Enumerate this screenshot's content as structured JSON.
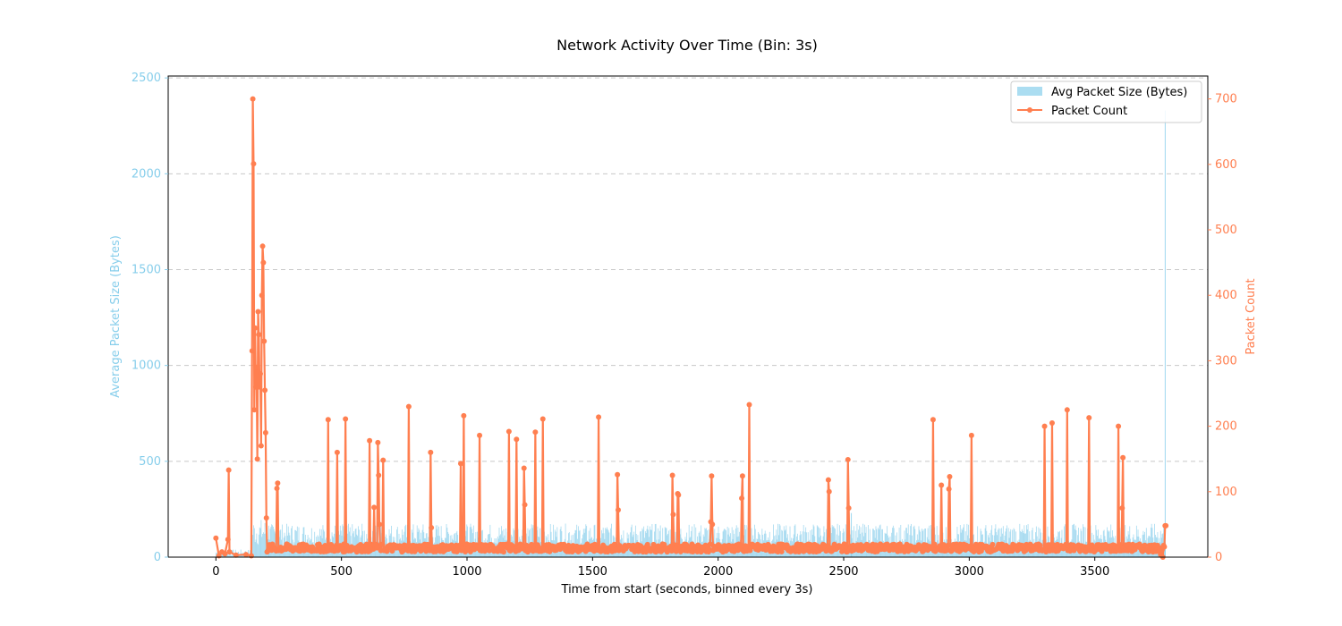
{
  "chart_data": {
    "type": "bar+line",
    "title": "Network Activity Over Time (Bin: 3s)",
    "xlabel": "Time from start (seconds, binned every 3s)",
    "ylabel_left": "Average Packet Size (Bytes)",
    "ylabel_right": "Packet Count",
    "xlim": [
      -190,
      3950
    ],
    "ylim_left": [
      0,
      2510
    ],
    "ylim_right": [
      0,
      735
    ],
    "x_ticks": [
      0,
      500,
      1000,
      1500,
      2000,
      2500,
      3000,
      3500
    ],
    "y_left_ticks": [
      0,
      500,
      1000,
      1500,
      2000,
      2500
    ],
    "y_right_ticks": [
      0,
      100,
      200,
      300,
      400,
      500,
      600,
      700
    ],
    "grid": "horizontal dashed",
    "legend_position": "top-right",
    "bin_seconds": 3,
    "colors": {
      "bars": "#87ceeb",
      "line": "#ff7f50",
      "left_axis": "#87ceeb",
      "right_axis": "#ff7f50"
    },
    "series": [
      {
        "name": "Avg Packet Size (Bytes)",
        "kind": "bar",
        "baseline_range": [
          60,
          170
        ],
        "segments": [
          {
            "x_start": 0,
            "x_end": 140,
            "level": [
              5,
              40
            ]
          },
          {
            "x_start": 141,
            "x_end": 210,
            "level": [
              60,
              200
            ]
          },
          {
            "x_start": 210,
            "x_end": 3780,
            "level": [
              60,
              175
            ]
          }
        ],
        "spikes": [
          {
            "x": 2530,
            "value": 230
          },
          {
            "x": 3780,
            "value": 2330
          }
        ]
      },
      {
        "name": "Packet Count",
        "kind": "line",
        "baseline_range": [
          8,
          20
        ],
        "points": [
          [
            0,
            29
          ],
          [
            12,
            2
          ],
          [
            24,
            8
          ],
          [
            36,
            5
          ],
          [
            48,
            27
          ],
          [
            51,
            133
          ],
          [
            54,
            8
          ],
          [
            80,
            3
          ],
          [
            120,
            4
          ],
          [
            141,
            2
          ],
          [
            144,
            315
          ],
          [
            147,
            700
          ],
          [
            150,
            601
          ],
          [
            153,
            225
          ],
          [
            156,
            350
          ],
          [
            159,
            260
          ],
          [
            162,
            290
          ],
          [
            165,
            150
          ],
          [
            168,
            375
          ],
          [
            171,
            340
          ],
          [
            174,
            260
          ],
          [
            177,
            280
          ],
          [
            180,
            170
          ],
          [
            183,
            400
          ],
          [
            186,
            475
          ],
          [
            189,
            450
          ],
          [
            192,
            330
          ],
          [
            195,
            255
          ],
          [
            198,
            190
          ],
          [
            201,
            60
          ],
          [
            204,
            8
          ],
          [
            243,
            105
          ],
          [
            246,
            113
          ],
          [
            249,
            10
          ],
          [
            447,
            210
          ],
          [
            450,
            10
          ],
          [
            483,
            160
          ],
          [
            486,
            10
          ],
          [
            516,
            211
          ],
          [
            519,
            10
          ],
          [
            612,
            178
          ],
          [
            615,
            10
          ],
          [
            630,
            76
          ],
          [
            645,
            175
          ],
          [
            648,
            125
          ],
          [
            651,
            50
          ],
          [
            666,
            148
          ],
          [
            669,
            10
          ],
          [
            768,
            230
          ],
          [
            771,
            10
          ],
          [
            855,
            160
          ],
          [
            858,
            45
          ],
          [
            861,
            10
          ],
          [
            975,
            143
          ],
          [
            978,
            10
          ],
          [
            987,
            216
          ],
          [
            990,
            10
          ],
          [
            1050,
            186
          ],
          [
            1053,
            10
          ],
          [
            1167,
            192
          ],
          [
            1170,
            10
          ],
          [
            1197,
            180
          ],
          [
            1200,
            10
          ],
          [
            1227,
            136
          ],
          [
            1230,
            80
          ],
          [
            1233,
            10
          ],
          [
            1272,
            191
          ],
          [
            1275,
            10
          ],
          [
            1302,
            211
          ],
          [
            1305,
            10
          ],
          [
            1524,
            214
          ],
          [
            1527,
            10
          ],
          [
            1599,
            126
          ],
          [
            1602,
            72
          ],
          [
            1605,
            10
          ],
          [
            1818,
            125
          ],
          [
            1821,
            65
          ],
          [
            1839,
            97
          ],
          [
            1842,
            95
          ],
          [
            1845,
            10
          ],
          [
            1971,
            54
          ],
          [
            1974,
            124
          ],
          [
            1977,
            50
          ],
          [
            1980,
            10
          ],
          [
            2094,
            90
          ],
          [
            2097,
            124
          ],
          [
            2100,
            10
          ],
          [
            2124,
            233
          ],
          [
            2127,
            10
          ],
          [
            2439,
            118
          ],
          [
            2442,
            100
          ],
          [
            2445,
            10
          ],
          [
            2517,
            149
          ],
          [
            2520,
            75
          ],
          [
            2523,
            10
          ],
          [
            2856,
            210
          ],
          [
            2859,
            10
          ],
          [
            2889,
            110
          ],
          [
            2892,
            10
          ],
          [
            2919,
            104
          ],
          [
            2922,
            123
          ],
          [
            2925,
            10
          ],
          [
            3009,
            186
          ],
          [
            3012,
            10
          ],
          [
            3300,
            200
          ],
          [
            3303,
            10
          ],
          [
            3330,
            205
          ],
          [
            3333,
            10
          ],
          [
            3390,
            225
          ],
          [
            3393,
            10
          ],
          [
            3477,
            213
          ],
          [
            3480,
            10
          ],
          [
            3594,
            200
          ],
          [
            3597,
            10
          ],
          [
            3609,
            75
          ],
          [
            3612,
            152
          ],
          [
            3615,
            10
          ],
          [
            3750,
            18
          ],
          [
            3762,
            4
          ],
          [
            3771,
            0
          ],
          [
            3780,
            48
          ],
          [
            3783,
            48
          ]
        ]
      }
    ]
  }
}
